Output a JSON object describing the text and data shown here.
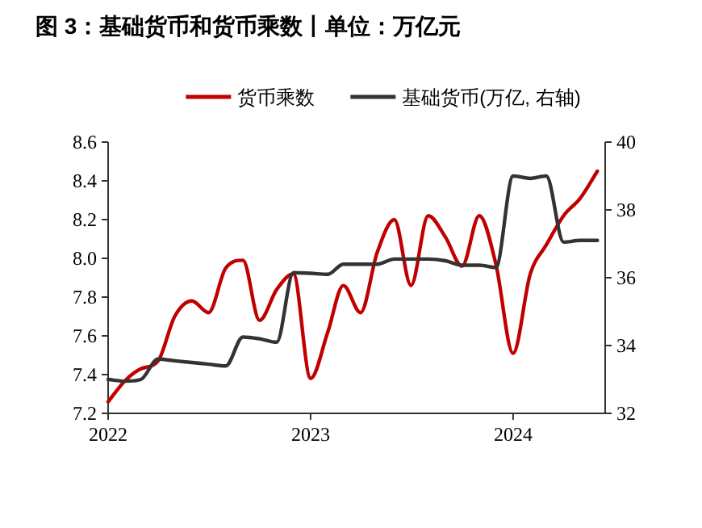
{
  "chart_data": {
    "type": "line",
    "title": "图 3：基础货币和货币乘数丨单位：万亿元",
    "x": [
      "2022-01",
      "2022-02",
      "2022-03",
      "2022-04",
      "2022-05",
      "2022-06",
      "2022-07",
      "2022-08",
      "2022-09",
      "2022-10",
      "2022-11",
      "2022-12",
      "2023-01",
      "2023-02",
      "2023-03",
      "2023-04",
      "2023-05",
      "2023-06",
      "2023-07",
      "2023-08",
      "2023-09",
      "2023-10",
      "2023-11",
      "2023-12",
      "2024-01",
      "2024-02",
      "2024-03",
      "2024-04",
      "2024-05",
      "2024-06"
    ],
    "series": [
      {
        "name": "货币乘数",
        "color": "#c00000",
        "values": [
          7.26,
          7.37,
          7.43,
          7.47,
          7.7,
          7.78,
          7.72,
          7.95,
          7.99,
          7.68,
          7.84,
          7.92,
          7.38,
          7.62,
          7.86,
          7.72,
          8.03,
          8.2,
          7.86,
          8.22,
          8.11,
          7.96,
          8.22,
          7.97,
          7.51,
          7.92,
          8.07,
          8.22,
          8.31,
          8.45
        ]
      },
      {
        "name": "基础货币(万亿, 右轴)",
        "color": "#333333",
        "axis": "y2",
        "values": [
          33.0,
          32.95,
          33.0,
          33.6,
          33.55,
          33.5,
          33.45,
          33.4,
          34.25,
          34.2,
          34.1,
          36.15,
          36.13,
          36.1,
          36.4,
          36.4,
          36.4,
          36.55,
          36.55,
          36.55,
          36.5,
          36.37,
          36.37,
          36.3,
          39.0,
          38.93,
          39.0,
          37.05,
          37.1,
          37.1
        ]
      }
    ],
    "xlim": [
      "2022-01-01",
      "2024-06-15"
    ],
    "xticks": [
      "2022",
      "2023",
      "2024"
    ],
    "ylim": [
      7.2,
      8.6
    ],
    "yticks": [
      {
        "value": 7.2,
        "label": "7.2"
      },
      {
        "value": 7.4,
        "label": "7.4"
      },
      {
        "value": 7.6,
        "label": "7.6"
      },
      {
        "value": 7.8,
        "label": "7.8"
      },
      {
        "value": 8.0,
        "label": "8.0"
      },
      {
        "value": 8.2,
        "label": "8.2"
      },
      {
        "value": 8.4,
        "label": "8.4"
      },
      {
        "value": 8.6,
        "label": "8.6"
      }
    ],
    "y2lim": [
      32,
      40
    ],
    "y2ticks": [
      32,
      34,
      36,
      38,
      40
    ],
    "legend": "top",
    "grid": false,
    "line_style": "solid",
    "marker": "none"
  }
}
